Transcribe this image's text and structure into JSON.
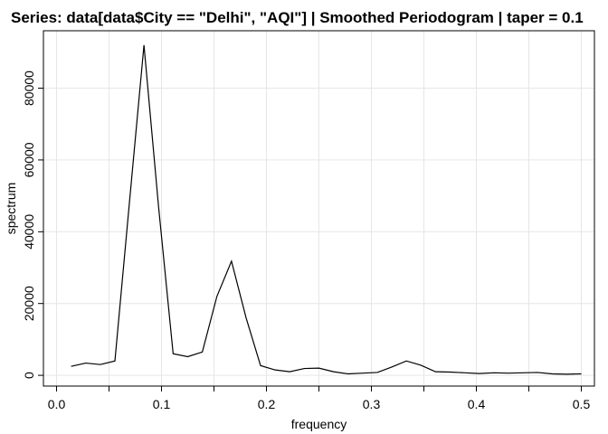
{
  "chart_data": {
    "type": "line",
    "title": "Series: data[data$City == \"Delhi\", \"AQI\"]  |  Smoothed Periodogram  |  taper = 0.1",
    "xlabel": "frequency",
    "ylabel": "spectrum",
    "xlim": [
      -0.0125,
      0.5125
    ],
    "ylim": [
      -3000,
      96000
    ],
    "xticks": [
      0.0,
      0.1,
      0.2,
      0.3,
      0.4,
      0.5
    ],
    "xtick_labels": [
      "0.0",
      "0.1",
      "0.2",
      "0.3",
      "0.4",
      "0.5"
    ],
    "yticks": [
      0,
      20000,
      40000,
      60000,
      80000
    ],
    "ytick_labels": [
      "0",
      "20000",
      "40000",
      "60000",
      "80000"
    ],
    "grid": true,
    "line_color": "#000000",
    "grid_color": "#e6e6e6",
    "series": [
      {
        "x": [
          0.0139,
          0.0278,
          0.0417,
          0.0556,
          0.0694,
          0.0833,
          0.0972,
          0.1111,
          0.125,
          0.1389,
          0.1528,
          0.1667,
          0.1806,
          0.1944,
          0.2083,
          0.2222,
          0.2361,
          0.25,
          0.2639,
          0.2778,
          0.2917,
          0.3056,
          0.3194,
          0.3333,
          0.3472,
          0.3611,
          0.375,
          0.3889,
          0.4028,
          0.4167,
          0.4306,
          0.4444,
          0.4583,
          0.4722,
          0.4861,
          0.5
        ],
        "y": [
          2500,
          3400,
          3000,
          4000,
          48000,
          92000,
          47000,
          6000,
          5200,
          6500,
          22000,
          31800,
          16000,
          2700,
          1500,
          1000,
          1900,
          2000,
          1000,
          400,
          600,
          800,
          2300,
          4000,
          2800,
          1000,
          900,
          700,
          500,
          700,
          600,
          700,
          800,
          400,
          300,
          400
        ]
      }
    ]
  }
}
